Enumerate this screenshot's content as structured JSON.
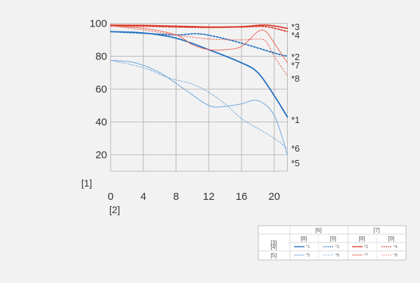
{
  "chart_data": {
    "type": "line",
    "title": "",
    "xlabel": "[2]",
    "ylabel": "[1]",
    "xlim": [
      0,
      21.6
    ],
    "ylim": [
      10,
      100
    ],
    "x_ticks": [
      0,
      4,
      8,
      12,
      16,
      20
    ],
    "y_ticks": [
      20,
      40,
      60,
      80,
      100
    ],
    "grid": true,
    "series": [
      {
        "name": "*1",
        "color": "#1f6fc1",
        "dashed": false,
        "thick": true,
        "points": [
          [
            0,
            95
          ],
          [
            4,
            94.2
          ],
          [
            8,
            91
          ],
          [
            12,
            84
          ],
          [
            16,
            76
          ],
          [
            18,
            70
          ],
          [
            20,
            56
          ],
          [
            21.6,
            43
          ]
        ]
      },
      {
        "name": "*2",
        "color": "#1f6fc1",
        "dashed": true,
        "thick": true,
        "points": [
          [
            0,
            95
          ],
          [
            4,
            94
          ],
          [
            8,
            93
          ],
          [
            10.5,
            93.7
          ],
          [
            12.5,
            92.3
          ],
          [
            16,
            88
          ],
          [
            20,
            82
          ],
          [
            21.6,
            80
          ]
        ]
      },
      {
        "name": "*3",
        "color": "#d93a2b",
        "dashed": false,
        "thick": true,
        "points": [
          [
            0,
            99
          ],
          [
            4,
            98.8
          ],
          [
            8,
            98.3
          ],
          [
            12,
            97.8
          ],
          [
            16,
            98
          ],
          [
            19,
            99
          ],
          [
            21.6,
            97
          ]
        ]
      },
      {
        "name": "*4",
        "color": "#d93a2b",
        "dashed": true,
        "thick": true,
        "points": [
          [
            0,
            98.5
          ],
          [
            4,
            98.3
          ],
          [
            8,
            97.8
          ],
          [
            12,
            97.5
          ],
          [
            16,
            97.8
          ],
          [
            19,
            98
          ],
          [
            21.6,
            95
          ]
        ]
      },
      {
        "name": "*5",
        "color": "#6ea6dc",
        "dashed": false,
        "thick": false,
        "points": [
          [
            0,
            77.5
          ],
          [
            3,
            76
          ],
          [
            6,
            70
          ],
          [
            9,
            60
          ],
          [
            12,
            50
          ],
          [
            14,
            49.5
          ],
          [
            16,
            51
          ],
          [
            18,
            53
          ],
          [
            20,
            44
          ],
          [
            21.6,
            20
          ]
        ]
      },
      {
        "name": "*6",
        "color": "#6ea6dc",
        "dashed": true,
        "thick": false,
        "points": [
          [
            0,
            77.5
          ],
          [
            4,
            73
          ],
          [
            7,
            67
          ],
          [
            10,
            63
          ],
          [
            12,
            58
          ],
          [
            14,
            51
          ],
          [
            16,
            42
          ],
          [
            18,
            36
          ],
          [
            20,
            30
          ],
          [
            21.6,
            24
          ]
        ]
      },
      {
        "name": "*7",
        "color": "#e8675a",
        "dashed": false,
        "thick": false,
        "points": [
          [
            0,
            98.5
          ],
          [
            4,
            97
          ],
          [
            8,
            93
          ],
          [
            10,
            87
          ],
          [
            12,
            84
          ],
          [
            14,
            84
          ],
          [
            16,
            86
          ],
          [
            18,
            95
          ],
          [
            19,
            95
          ],
          [
            20,
            88
          ],
          [
            21.6,
            76
          ]
        ]
      },
      {
        "name": "*8",
        "color": "#e8675a",
        "dashed": true,
        "thick": false,
        "points": [
          [
            0,
            98.5
          ],
          [
            4,
            96
          ],
          [
            8,
            93
          ],
          [
            12,
            90.5
          ],
          [
            16,
            90
          ],
          [
            18,
            90.5
          ],
          [
            19,
            89
          ],
          [
            20,
            80
          ],
          [
            21.6,
            68
          ]
        ]
      }
    ]
  },
  "legend": {
    "header_row_label": "[3]",
    "group_6": "[6]",
    "group_7": "[7]",
    "sub_8": "[8]",
    "sub_9": "[9]",
    "row_4": "[4]",
    "row_5": "[5]",
    "samples": [
      "*1",
      "*2",
      "*3",
      "*4",
      "*5",
      "*6",
      "*7",
      "*8"
    ]
  }
}
